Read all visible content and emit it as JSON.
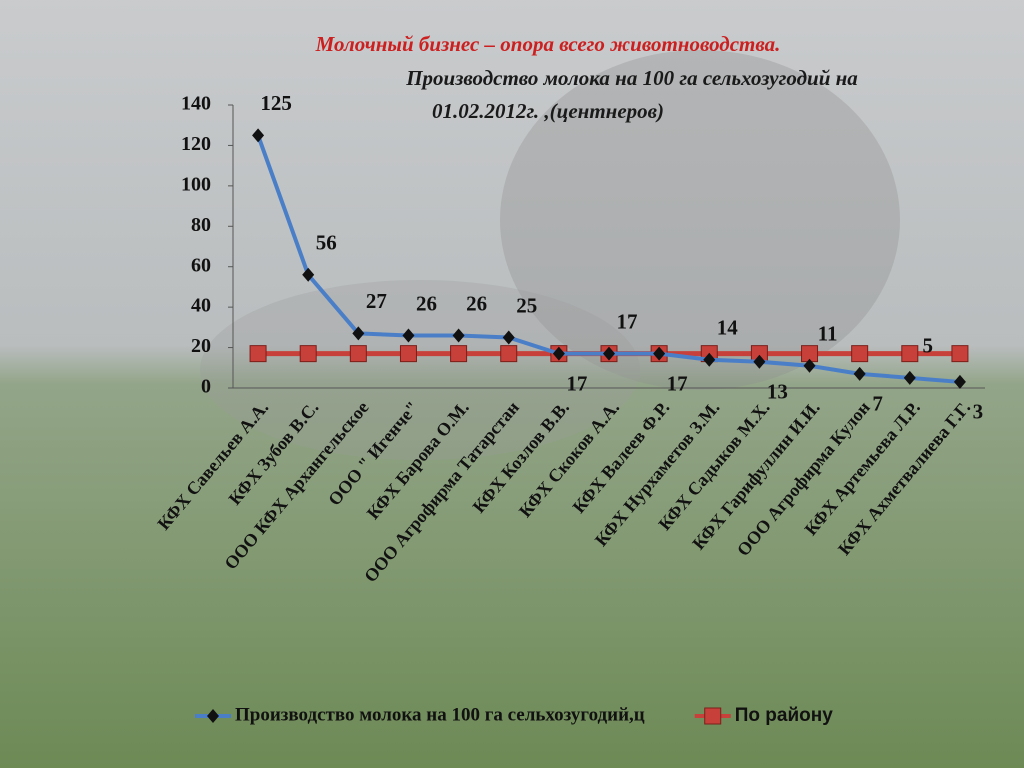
{
  "chart_data": {
    "type": "line",
    "title": "Молочный бизнес – опора всего животноводства.",
    "subtitle": [
      "Производство  молока на 100 га сельхозугодий на",
      "01.02.2012г.  ,(центнеров)"
    ],
    "categories": [
      "КФХ Савельев А.А.",
      "КФХ Зубов В.С.",
      "ООО КФХ Архангельское",
      "ООО \" Игенче\"",
      "КФХ Барова О.М.",
      "ООО Агрофирма Татарстан",
      "КФХ Козлов В.В.",
      "КФХ Скоков А.А.",
      "КФХ Валеев Ф.Р.",
      "КФХ Нурхаметов  З.М.",
      "КФХ Садыков М.Х.",
      "КФХ Гарифуллин И.И.",
      "ООО Агрофирма Кулон",
      "КФХ Артемьева Л.Р.",
      "КФХ Ахметвалиева Г.Г."
    ],
    "series": [
      {
        "name": "Производство молока на 100 га сельхозугодий,ц",
        "color": "#4a7fc8",
        "marker": "diamond",
        "values": [
          125,
          56,
          27,
          26,
          26,
          25,
          17,
          17,
          17,
          14,
          13,
          11,
          7,
          5,
          3
        ]
      },
      {
        "name": "По району",
        "color": "#c8403a",
        "marker": "square",
        "values": [
          17,
          17,
          17,
          17,
          17,
          17,
          17,
          17,
          17,
          17,
          17,
          17,
          17,
          17,
          17
        ]
      }
    ],
    "ylim": [
      0,
      140
    ],
    "yticks": [
      0,
      20,
      40,
      60,
      80,
      100,
      120,
      140
    ],
    "legend": "bottom"
  }
}
